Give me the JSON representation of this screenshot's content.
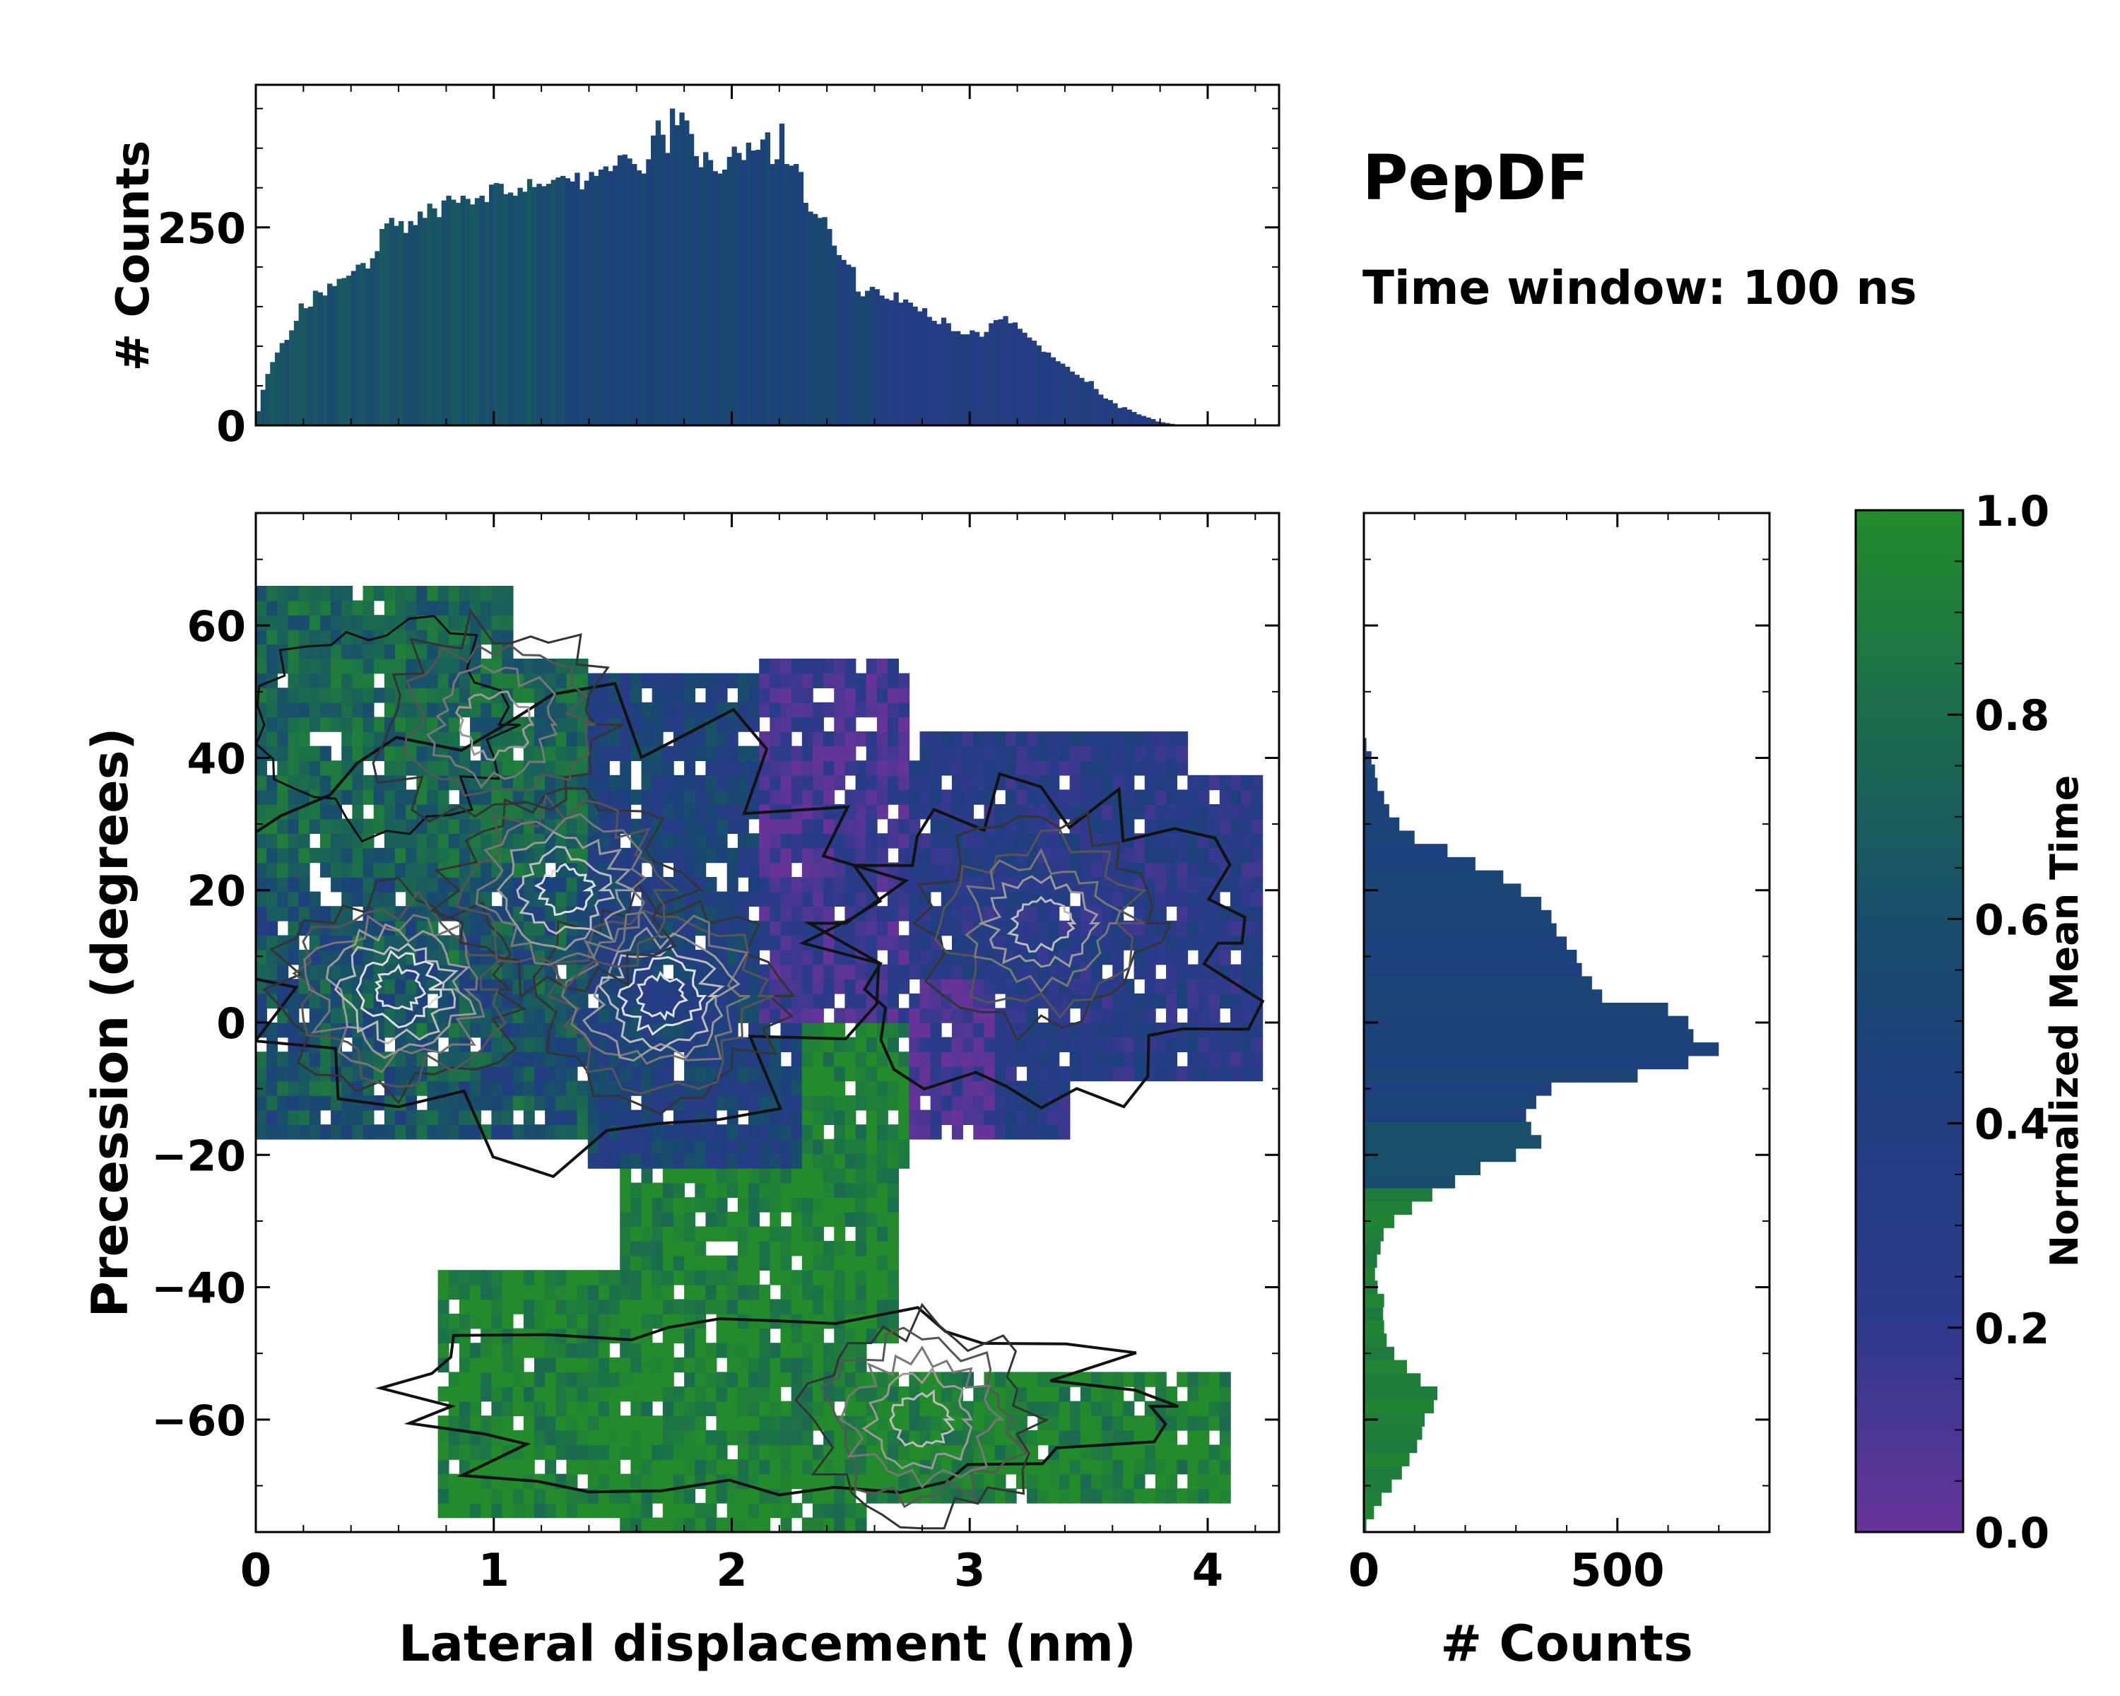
{
  "chart_data": {
    "type": "heatmap",
    "title": "PepDF",
    "subtitle": "Time window: 100 ns",
    "main": {
      "xlabel": "Lateral displacement (nm)",
      "ylabel": "Precession (degrees)",
      "xlim": [
        0,
        4.3
      ],
      "ylim": [
        -77,
        77
      ],
      "xticks": [
        0,
        1,
        2,
        3,
        4
      ],
      "xtick_labels": [
        "0",
        "1",
        "2",
        "3",
        "4"
      ],
      "yticks": [
        -60,
        -40,
        -20,
        0,
        20,
        40,
        60
      ],
      "ytick_labels": [
        "−60",
        "−40",
        "−20",
        "0",
        "20",
        "40",
        "60"
      ],
      "regions": [
        {
          "name": "upper-left cluster",
          "x": [
            0.0,
            1.4
          ],
          "y": [
            -18,
            66
          ],
          "mean_time": 0.75
        },
        {
          "name": "central cluster",
          "x": [
            1.2,
            2.6
          ],
          "y": [
            -25,
            50
          ],
          "mean_time": 0.45
        },
        {
          "name": "upper-right purple region",
          "x": [
            2.1,
            2.8
          ],
          "y": [
            0,
            55
          ],
          "mean_time": 0.15
        },
        {
          "name": "right cluster",
          "x": [
            2.6,
            4.25
          ],
          "y": [
            -20,
            45
          ],
          "mean_time": 0.3
        },
        {
          "name": "lower cluster",
          "x": [
            0.7,
            4.1
          ],
          "y": [
            -77,
            -20
          ],
          "mean_time": 0.95
        }
      ],
      "density_peaks": [
        {
          "x": 0.6,
          "y": 5,
          "intensity": 1.0
        },
        {
          "x": 1.7,
          "y": 4,
          "intensity": 1.0
        },
        {
          "x": 1.3,
          "y": 20,
          "intensity": 0.7
        },
        {
          "x": 3.3,
          "y": 15,
          "intensity": 0.5
        },
        {
          "x": 2.8,
          "y": -60,
          "intensity": 0.5
        },
        {
          "x": 1.0,
          "y": 45,
          "intensity": 0.4
        }
      ]
    },
    "top_histogram": {
      "ylabel": "# Counts",
      "ylim": [
        0,
        430
      ],
      "yticks": [
        0,
        250
      ],
      "ytick_labels": [
        "0",
        "250"
      ],
      "x_start": 0.0,
      "bin_width": 0.02,
      "values": [
        18,
        45,
        65,
        80,
        92,
        104,
        108,
        120,
        132,
        154,
        148,
        150,
        170,
        168,
        164,
        179,
        176,
        185,
        186,
        189,
        195,
        203,
        205,
        198,
        211,
        220,
        248,
        255,
        262,
        252,
        258,
        243,
        258,
        253,
        270,
        262,
        280,
        274,
        263,
        284,
        290,
        285,
        281,
        290,
        286,
        279,
        287,
        290,
        282,
        304,
        306,
        305,
        292,
        294,
        290,
        300,
        295,
        311,
        301,
        305,
        302,
        305,
        310,
        313,
        315,
        312,
        308,
        319,
        298,
        309,
        320,
        315,
        323,
        327,
        321,
        328,
        341,
        342,
        337,
        330,
        322,
        318,
        336,
        366,
        385,
        367,
        344,
        400,
        379,
        395,
        385,
        368,
        340,
        326,
        345,
        335,
        321,
        318,
        323,
        339,
        352,
        344,
        335,
        357,
        347,
        348,
        361,
        370,
        330,
        336,
        381,
        330,
        328,
        330,
        320,
        281,
        270,
        267,
        262,
        263,
        248,
        227,
        215,
        209,
        203,
        200,
        169,
        163,
        170,
        175,
        172,
        164,
        160,
        158,
        168,
        155,
        159,
        155,
        150,
        144,
        148,
        137,
        132,
        128,
        136,
        129,
        119,
        119,
        115,
        115,
        120,
        118,
        112,
        118,
        129,
        133,
        134,
        138,
        129,
        130,
        122,
        117,
        111,
        107,
        101,
        93,
        92,
        86,
        81,
        78,
        74,
        68,
        64,
        60,
        55,
        56,
        46,
        39,
        34,
        32,
        28,
        22,
        23,
        20,
        17,
        14,
        12,
        10,
        8,
        5,
        4,
        3,
        2,
        1
      ]
    },
    "right_histogram": {
      "xlabel": "# Counts",
      "xlim": [
        0,
        800
      ],
      "xticks": [
        0,
        500
      ],
      "xtick_labels": [
        "0",
        "500"
      ],
      "y_start": -77,
      "bin_width": 2,
      "values": [
        5,
        20,
        35,
        55,
        75,
        90,
        105,
        115,
        120,
        138,
        145,
        112,
        85,
        60,
        45,
        40,
        38,
        40,
        27,
        22,
        26,
        33,
        39,
        60,
        95,
        135,
        180,
        230,
        300,
        350,
        330,
        320,
        340,
        370,
        540,
        640,
        700,
        650,
        640,
        600,
        470,
        450,
        430,
        420,
        400,
        380,
        370,
        350,
        310,
        275,
        220,
        165,
        100,
        70,
        50,
        40,
        27,
        22,
        15,
        5
      ]
    },
    "colorbar": {
      "label": "Normalized Mean Time",
      "range": [
        0.0,
        1.0
      ],
      "ticks": [
        0.0,
        0.2,
        0.4,
        0.6,
        0.8,
        1.0
      ],
      "tick_labels": [
        "0.0",
        "0.2",
        "0.4",
        "0.6",
        "0.8",
        "1.0"
      ],
      "colors": [
        "#663399",
        "#2e3a8c",
        "#1e3f7d",
        "#184e6b",
        "#1b6d4c",
        "#238b2c"
      ]
    }
  }
}
